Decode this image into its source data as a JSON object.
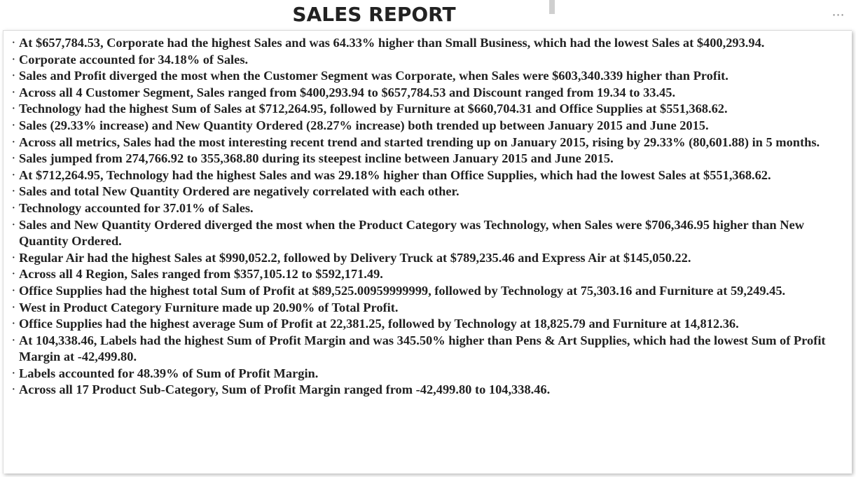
{
  "header": {
    "title": "SALES REPORT",
    "more_icon": "more-options-icon"
  },
  "insights": [
    "At $657,784.53, Corporate had the highest Sales and was 64.33% higher than Small Business, which had the lowest Sales at $400,293.94.",
    "Corporate accounted for 34.18% of Sales.",
    "Sales and Profit diverged the most when the Customer Segment was Corporate, when Sales were $603,340.339 higher than Profit.",
    "Across all 4 Customer Segment, Sales ranged from $400,293.94 to $657,784.53 and Discount ranged from 19.34 to 33.45.",
    "Technology had the highest Sum of Sales at $712,264.95, followed by Furniture at $660,704.31 and Office Supplies at $551,368.62.",
    "Sales (29.33% increase) and New Quantity Ordered (28.27% increase) both trended up between January 2015 and June 2015.",
    "Across all metrics, Sales had the most interesting recent trend and started trending up on January 2015, rising by 29.33% (80,601.88) in 5 months.",
    "Sales jumped from 274,766.92 to 355,368.80 during its steepest incline between January 2015 and June 2015.",
    "At $712,264.95, Technology had the highest Sales and was 29.18% higher than Office Supplies, which had the lowest Sales at $551,368.62.",
    "Sales and total New Quantity Ordered are negatively correlated with each other.",
    "Technology accounted for 37.01% of Sales.",
    "Sales and New Quantity Ordered diverged the most when the Product Category was Technology, when Sales were $706,346.95 higher than New Quantity Ordered.",
    "Regular Air had the highest Sales at $990,052.2, followed by Delivery Truck at $789,235.46 and Express Air at $145,050.22.",
    "Across all 4 Region, Sales ranged from $357,105.12 to $592,171.49.",
    "Office Supplies had the highest total Sum of Profit at $89,525.00959999999, followed by Technology at 75,303.16 and Furniture at 59,249.45.",
    "West in Product Category Furniture made up 20.90% of Total Profit.",
    "Office Supplies had the highest average Sum of Profit at 22,381.25, followed by Technology at 18,825.79 and Furniture at 14,812.36.",
    "At 104,338.46, Labels had the highest Sum of Profit Margin and was 345.50% higher than Pens & Art Supplies, which had the lowest Sum of Profit Margin at -42,499.80.",
    "Labels accounted for 48.39% of Sum of Profit Margin.",
    "Across all 17 Product Sub-Category, Sum of Profit Margin ranged from -42,499.80 to 104,338.46."
  ]
}
